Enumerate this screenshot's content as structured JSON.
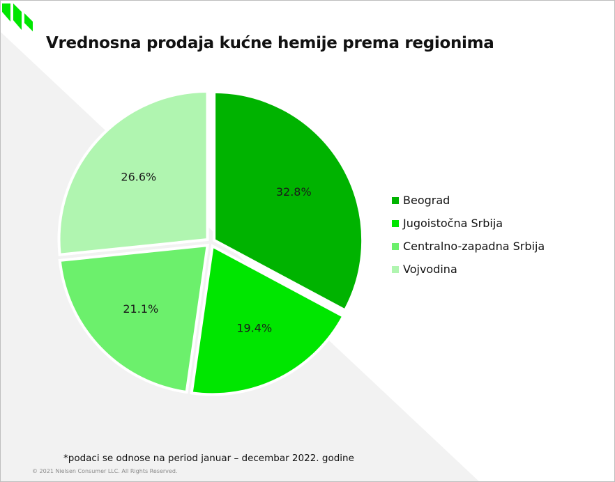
{
  "title": "Vrednosna prodaja kućne hemije prema regionima",
  "colors": {
    "beograd": "#00b300",
    "jugoistocna": "#00e600",
    "centralno": "#6cf06c",
    "vojvodina": "#b0f5b0",
    "background_shape": "#f2f2f2",
    "logo": "#00e600"
  },
  "chart_data": {
    "type": "pie",
    "categories": [
      "Beograd",
      "Jugoistočna Srbija",
      "Centralno-zapadna Srbija",
      "Vojvodina"
    ],
    "values": [
      32.8,
      19.4,
      21.1,
      26.6
    ],
    "data_labels": [
      "32.8%",
      "19.4%",
      "21.1%",
      "26.6%"
    ],
    "unit": "%",
    "start_angle": "12 o'clock",
    "direction": "clockwise",
    "exploded": true,
    "legend_position": "right"
  },
  "footnote": "*podaci se odnose na period januar – decembar 2022. godine",
  "copyright": "© 2021 Nielsen Consumer LLC. All Rights Reserved."
}
